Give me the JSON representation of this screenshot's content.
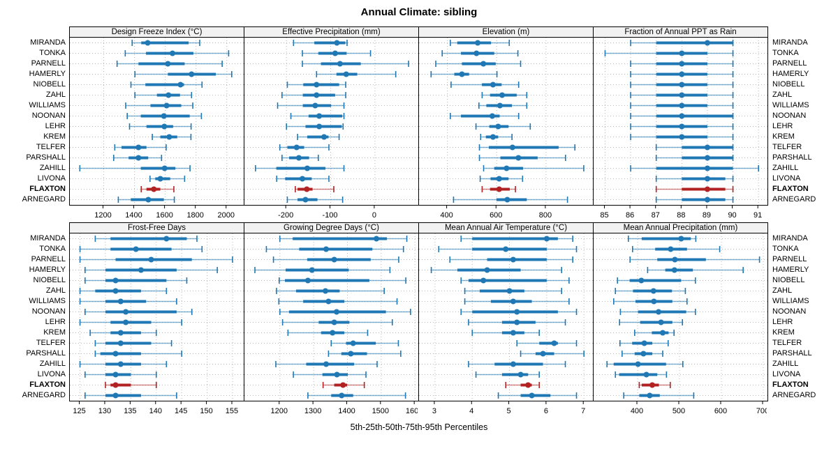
{
  "title": "Annual Climate: sibling",
  "caption": "5th-25th-50th-75th-95th Percentiles",
  "colors": {
    "series": "#1f77b4",
    "highlight": "#b22222",
    "grid": "#b8b8b8",
    "strip_bg": "#f2f2f2",
    "panel_border": "#000000"
  },
  "chart_data": {
    "type": "dot-whisker-percentile",
    "percentiles": [
      5,
      25,
      50,
      75,
      95
    ],
    "stations": [
      "MIRANDA",
      "TONKA",
      "PARNELL",
      "HAMERLY",
      "NIOBELL",
      "ZAHL",
      "WILLIAMS",
      "NOONAN",
      "LEHR",
      "KREM",
      "TELFER",
      "PARSHALL",
      "ZAHILL",
      "LIVONA",
      "FLAXTON",
      "ARNEGARD"
    ],
    "highlight_station": "FLAXTON",
    "legend_position": "none",
    "grid": "dotted",
    "panels": [
      {
        "label": "Design Freeze Index (°C)",
        "xlim": [
          980,
          2110
        ],
        "ticks": [
          1200,
          1400,
          1600,
          1800,
          2000
        ],
        "values": {
          "MIRANDA": [
            1385,
            1444,
            1486,
            1752,
            1824
          ],
          "TONKA": [
            1340,
            1475,
            1647,
            1783,
            2012
          ],
          "PARNELL": [
            1287,
            1426,
            1617,
            1726,
            1970
          ],
          "HAMERLY": [
            1403,
            1617,
            1771,
            1929,
            2032
          ],
          "NIOBELL": [
            1377,
            1471,
            1699,
            1722,
            1839
          ],
          "ZAHL": [
            1403,
            1546,
            1621,
            1696,
            1771
          ],
          "WILLIAMS": [
            1343,
            1504,
            1609,
            1704,
            1779
          ],
          "NOONAN": [
            1353,
            1441,
            1591,
            1759,
            1835
          ],
          "LEHR": [
            1368,
            1478,
            1594,
            1651,
            1768
          ],
          "KREM": [
            1516,
            1568,
            1626,
            1678,
            1767
          ],
          "TELFER": [
            1272,
            1316,
            1426,
            1478,
            1606
          ],
          "PARSHALL": [
            1265,
            1362,
            1426,
            1489,
            1576
          ],
          "ZAHILL": [
            1045,
            1441,
            1596,
            1666,
            1761
          ],
          "LIVONA": [
            1501,
            1535,
            1568,
            1632,
            1726
          ],
          "FLAXTON": [
            1444,
            1478,
            1526,
            1568,
            1656
          ],
          "ARNEGARD": [
            1295,
            1376,
            1490,
            1591,
            1659
          ]
        }
      },
      {
        "label": "Effective Precipitation (mm)",
        "xlim": [
          -295,
          98
        ],
        "ticks": [
          -200,
          -100,
          0
        ],
        "values": {
          "MIRANDA": [
            -184,
            -137,
            -86,
            -67,
            -63
          ],
          "TONKA": [
            -164,
            -128,
            -90,
            -64,
            -10
          ],
          "PARNELL": [
            -164,
            -122,
            -79,
            -32,
            76
          ],
          "HAMERLY": [
            -132,
            -87,
            -65,
            -40,
            47
          ],
          "NIOBELL": [
            -198,
            -162,
            -132,
            -81,
            -66
          ],
          "ZAHL": [
            -210,
            -163,
            -132,
            -90,
            -66
          ],
          "WILLIAMS": [
            -220,
            -163,
            -135,
            -99,
            -70
          ],
          "NOONAN": [
            -190,
            -150,
            -126,
            -74,
            -70
          ],
          "LEHR": [
            -200,
            -157,
            -126,
            -75,
            -72
          ],
          "KREM": [
            -175,
            -153,
            -115,
            -105,
            -81
          ],
          "TELFER": [
            -215,
            -198,
            -177,
            -160,
            -104
          ],
          "PARSHALL": [
            -210,
            -194,
            -172,
            -149,
            -128
          ],
          "ZAHILL": [
            -270,
            -223,
            -153,
            -112,
            -70
          ],
          "LIVONA": [
            -222,
            -203,
            -164,
            -143,
            -104
          ],
          "FLAXTON": [
            -180,
            -175,
            -154,
            -141,
            -93
          ],
          "ARNEGARD": [
            -198,
            -175,
            -157,
            -130,
            -73
          ]
        }
      },
      {
        "label": "Elevation (m)",
        "xlim": [
          285,
          990
        ],
        "ticks": [
          400,
          600,
          800
        ],
        "values": {
          "MIRANDA": [
            412,
            440,
            523,
            577,
            651
          ],
          "TONKA": [
            379,
            455,
            518,
            590,
            686
          ],
          "PARNELL": [
            353,
            459,
            546,
            596,
            697
          ],
          "HAMERLY": [
            334,
            428,
            459,
            488,
            601
          ],
          "NIOBELL": [
            415,
            540,
            585,
            620,
            689
          ],
          "ZAHL": [
            541,
            573,
            622,
            681,
            722
          ],
          "WILLIAMS": [
            528,
            558,
            613,
            662,
            722
          ],
          "NOONAN": [
            412,
            455,
            582,
            612,
            689
          ],
          "LEHR": [
            516,
            570,
            606,
            648,
            736
          ],
          "KREM": [
            535,
            556,
            585,
            606,
            662
          ],
          "TELFER": [
            530,
            568,
            664,
            851,
            917
          ],
          "PARSHALL": [
            530,
            615,
            688,
            766,
            879
          ],
          "ZAHILL": [
            547,
            590,
            640,
            707,
            953
          ],
          "LIVONA": [
            533,
            575,
            610,
            648,
            705
          ],
          "FLAXTON": [
            541,
            573,
            610,
            653,
            676
          ],
          "ARNEGARD": [
            425,
            599,
            643,
            722,
            887
          ]
        }
      },
      {
        "label": "Fraction of Annual PPT as Rain",
        "xlim": [
          84.55,
          91.35
        ],
        "ticks": [
          85,
          86,
          87,
          88,
          89,
          90,
          91
        ],
        "values": {
          "MIRANDA": [
            86,
            87,
            89,
            90,
            90
          ],
          "TONKA": [
            85,
            87,
            88,
            89,
            90
          ],
          "PARNELL": [
            86,
            87,
            88,
            89,
            90
          ],
          "HAMERLY": [
            86,
            87,
            88,
            89,
            90
          ],
          "NIOBELL": [
            86,
            87,
            88,
            89,
            90
          ],
          "ZAHL": [
            86,
            87,
            88,
            89,
            90
          ],
          "WILLIAMS": [
            86,
            87,
            88,
            89,
            90
          ],
          "NOONAN": [
            86,
            87,
            88,
            90,
            90
          ],
          "LEHR": [
            86,
            87,
            88,
            89,
            90
          ],
          "KREM": [
            86,
            87,
            88,
            89,
            90
          ],
          "TELFER": [
            87,
            88,
            89,
            90,
            90
          ],
          "PARSHALL": [
            87,
            88,
            89,
            90,
            90
          ],
          "ZAHILL": [
            86,
            87,
            89,
            90,
            91
          ],
          "LIVONA": [
            87,
            88,
            89,
            89.7,
            90
          ],
          "FLAXTON": [
            87,
            88,
            89,
            89.7,
            90
          ],
          "ARNEGARD": [
            87,
            88,
            89,
            89.7,
            90
          ]
        }
      },
      {
        "label": "Frost-Free Days",
        "xlim": [
          123,
          157.2
        ],
        "ticks": [
          125,
          130,
          135,
          140,
          145,
          150,
          155
        ],
        "values": {
          "MIRANDA": [
            128,
            131,
            142,
            146,
            148
          ],
          "TONKA": [
            125,
            131,
            136,
            143,
            149
          ],
          "PARNELL": [
            125,
            132,
            139,
            147,
            155
          ],
          "HAMERLY": [
            126,
            130,
            137,
            144,
            152
          ],
          "NIOBELL": [
            126,
            130,
            132,
            142,
            146
          ],
          "ZAHL": [
            125,
            128,
            132,
            137,
            142
          ],
          "WILLIAMS": [
            125,
            130,
            133,
            138,
            144
          ],
          "NOONAN": [
            126,
            130,
            134,
            144,
            147
          ],
          "LEHR": [
            125,
            131,
            134,
            139,
            145
          ],
          "KREM": [
            127,
            131,
            133,
            137,
            140
          ],
          "TELFER": [
            128,
            130,
            133,
            139,
            143
          ],
          "PARSHALL": [
            128,
            129,
            132,
            137,
            145
          ],
          "ZAHILL": [
            125,
            130,
            133,
            137,
            142
          ],
          "LIVONA": [
            126,
            130,
            132,
            135,
            140
          ],
          "FLAXTON": [
            130,
            131,
            132,
            135,
            140
          ],
          "ARNEGARD": [
            126,
            130,
            132,
            137,
            144
          ]
        }
      },
      {
        "label": "Growing Degree Days (°C)",
        "xlim": [
          1095,
          1610
        ],
        "ticks": [
          1200,
          1300,
          1400,
          1500,
          1600
        ],
        "values": {
          "MIRANDA": [
            1200,
            1238,
            1486,
            1517,
            1576
          ],
          "TONKA": [
            1160,
            1257,
            1337,
            1474,
            1566
          ],
          "PARNELL": [
            1181,
            1281,
            1361,
            1469,
            1552
          ],
          "HAMERLY": [
            1126,
            1217,
            1295,
            1404,
            1526
          ],
          "NIOBELL": [
            1198,
            1215,
            1283,
            1465,
            1573
          ],
          "ZAHL": [
            1190,
            1248,
            1335,
            1377,
            1509
          ],
          "WILLIAMS": [
            1197,
            1269,
            1344,
            1391,
            1547
          ],
          "NOONAN": [
            1200,
            1227,
            1368,
            1514,
            1587
          ],
          "LEHR": [
            1208,
            1315,
            1361,
            1406,
            1533
          ],
          "KREM": [
            1224,
            1322,
            1356,
            1391,
            1460
          ],
          "TELFER": [
            1352,
            1396,
            1417,
            1484,
            1551
          ],
          "PARSHALL": [
            1344,
            1382,
            1410,
            1458,
            1558
          ],
          "ZAHILL": [
            1188,
            1278,
            1337,
            1420,
            1488
          ],
          "LIVONA": [
            1240,
            1326,
            1369,
            1401,
            1455
          ],
          "FLAXTON": [
            1328,
            1361,
            1387,
            1399,
            1450
          ],
          "ARNEGARD": [
            1283,
            1352,
            1383,
            1417,
            1572
          ]
        }
      },
      {
        "label": "Mean Annual Air Temperature (°C)",
        "xlim": [
          2.57,
          7.24
        ],
        "ticks": [
          3,
          4,
          5,
          6,
          7
        ],
        "values": {
          "MIRANDA": [
            3.7,
            4.0,
            6.0,
            6.3,
            6.7
          ],
          "TONKA": [
            3.1,
            4.0,
            4.9,
            6.0,
            6.8
          ],
          "PARNELL": [
            3.4,
            4.4,
            5.1,
            6.0,
            6.7
          ],
          "HAMERLY": [
            2.9,
            3.6,
            4.4,
            5.3,
            6.4
          ],
          "NIOBELL": [
            3.7,
            3.9,
            4.3,
            6.0,
            6.6
          ],
          "ZAHL": [
            3.8,
            4.2,
            5.0,
            5.4,
            6.4
          ],
          "WILLIAMS": [
            3.8,
            4.5,
            5.1,
            5.6,
            6.6
          ],
          "NOONAN": [
            3.7,
            4.0,
            5.2,
            6.3,
            6.8
          ],
          "LEHR": [
            3.9,
            4.8,
            5.2,
            5.7,
            6.5
          ],
          "KREM": [
            4.0,
            4.8,
            5.1,
            5.4,
            5.8
          ],
          "TELFER": [
            5.2,
            5.8,
            6.2,
            6.3,
            6.8
          ],
          "PARSHALL": [
            5.3,
            5.7,
            5.9,
            6.2,
            7.0
          ],
          "ZAHILL": [
            3.9,
            4.6,
            5.1,
            5.9,
            6.5
          ],
          "LIVONA": [
            4.1,
            4.8,
            5.3,
            5.5,
            5.8
          ],
          "FLAXTON": [
            4.9,
            5.3,
            5.5,
            5.6,
            5.8
          ],
          "ARNEGARD": [
            4.7,
            5.3,
            5.6,
            6.1,
            6.8
          ]
        }
      },
      {
        "label": "Mean Annual Precipitation (mm)",
        "xlim": [
          295,
          710
        ],
        "ticks": [
          400,
          500,
          600,
          700
        ],
        "values": {
          "MIRANDA": [
            378,
            410,
            504,
            527,
            539
          ],
          "TONKA": [
            388,
            442,
            479,
            518,
            596
          ],
          "PARNELL": [
            382,
            447,
            489,
            563,
            691
          ],
          "HAMERLY": [
            424,
            466,
            488,
            532,
            652
          ],
          "NIOBELL": [
            352,
            381,
            409,
            504,
            538
          ],
          "ZAHL": [
            347,
            389,
            438,
            482,
            514
          ],
          "WILLIAMS": [
            343,
            395,
            439,
            483,
            518
          ],
          "NOONAN": [
            359,
            401,
            450,
            516,
            538
          ],
          "LEHR": [
            357,
            406,
            456,
            483,
            507
          ],
          "KREM": [
            393,
            434,
            460,
            474,
            487
          ],
          "TELFER": [
            358,
            387,
            416,
            435,
            473
          ],
          "PARSHALL": [
            363,
            393,
            414,
            435,
            460
          ],
          "ZAHILL": [
            327,
            343,
            401,
            468,
            508
          ],
          "LIVONA": [
            347,
            356,
            421,
            447,
            469
          ],
          "FLAXTON": [
            404,
            410,
            435,
            451,
            478
          ],
          "ARNEGARD": [
            367,
            404,
            429,
            453,
            534
          ]
        }
      }
    ]
  }
}
